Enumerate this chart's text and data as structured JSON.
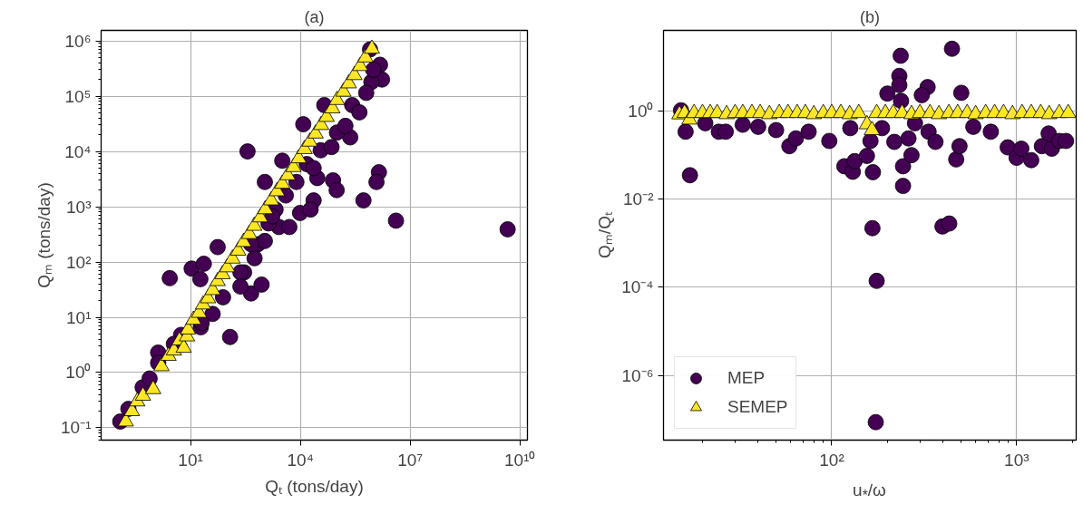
{
  "chart_data": [
    {
      "type": "scatter",
      "title": "(a)",
      "xlabel": "Qₜ (tons/day)",
      "ylabel": "Qₘ (tons/day)",
      "log": "xy",
      "grid": true,
      "legend": false,
      "xlim": [
        0.036,
        16000000000.0
      ],
      "ylim": [
        0.06,
        1550000.0
      ],
      "xticks": [
        {
          "value": 10,
          "label": "10¹"
        },
        {
          "value": 10000,
          "label": "10⁴"
        },
        {
          "value": 10000000,
          "label": "10⁷"
        },
        {
          "value": 10000000000,
          "label": "10¹⁰"
        }
      ],
      "yticks": [
        {
          "value": 0.1,
          "label": "10⁻¹"
        },
        {
          "value": 1,
          "label": "10⁰"
        },
        {
          "value": 10,
          "label": "10¹"
        },
        {
          "value": 100,
          "label": "10²"
        },
        {
          "value": 1000,
          "label": "10³"
        },
        {
          "value": 10000,
          "label": "10⁴"
        },
        {
          "value": 100000,
          "label": "10⁵"
        },
        {
          "value": 1000000,
          "label": "10⁶"
        }
      ],
      "series": [
        {
          "color": "#440154",
          "marker": "circle",
          "x": [
            0.12,
            0.2,
            0.49,
            0.76,
            1.3,
            1.3,
            2.7,
            10.7,
            23,
            18.5,
            19,
            120,
            55,
            450,
            870,
            360,
            1070,
            290,
            690,
            2600,
            5000,
            9800,
            23000,
            29000,
            78000,
            98000,
            230000,
            530000,
            1400000,
            1200000,
            4100000,
            4600000000,
            12000,
            45000,
            3200,
            800000,
            1500000,
            1700000,
            870000,
            630000,
            260000,
            100000,
            36000,
            15000,
            7800,
            4000,
            2100,
            1350,
            1070,
            560,
            230,
            77,
            40,
            20,
            5.5,
            3.5,
            230,
            450,
            19000,
            410000,
            170000,
            71000,
            23000,
            980000,
            1700
          ],
          "values": [
            0.13,
            0.22,
            0.54,
            0.78,
            2.3,
            1.5,
            51,
            76,
            93,
            49,
            6.6,
            4.4,
            186,
            27,
            39,
            10000,
            2800,
            65,
            210,
            430,
            430,
            770,
            1300,
            3300,
            3000,
            2000,
            18000,
            1300,
            4200,
            2800,
            560,
            390,
            31000,
            69000,
            6800,
            700000,
            370000,
            200000,
            180000,
            115000,
            69000,
            22000,
            10500,
            5900,
            2800,
            1600,
            890,
            500,
            240,
            117,
            65,
            23,
            11.5,
            7.9,
            4.8,
            3.3,
            36,
            210,
            890,
            51000,
            29000,
            12000,
            5000,
            300000,
            670
          ]
        },
        {
          "color": "#fde725",
          "marker": "triangle",
          "x": [
            0.17,
            0.25,
            0.35,
            0.5,
            0.95,
            1.6,
            2.5,
            3.5,
            5,
            6.5,
            8,
            8.5,
            12,
            17,
            22,
            30,
            40,
            55,
            75,
            100,
            140,
            200,
            280,
            400,
            550,
            800,
            1100,
            1600,
            2300,
            3200,
            4500,
            6500,
            9000,
            13000,
            18000,
            26000,
            37000,
            52000,
            75000,
            100000,
            150000,
            210000,
            300000,
            430000,
            600000,
            900000
          ],
          "values": [
            0.13,
            0.2,
            0.3,
            0.38,
            0.5,
            1.3,
            2.0,
            2.5,
            3.8,
            2.8,
            4.5,
            6,
            9,
            12,
            17,
            22,
            31,
            45,
            60,
            80,
            115,
            160,
            230,
            320,
            450,
            640,
            900,
            1300,
            1900,
            2600,
            3700,
            5200,
            7500,
            11000,
            15000,
            21000,
            30000,
            42000,
            60000,
            85000,
            120000,
            170000,
            240000,
            350000,
            500000,
            720000
          ]
        }
      ]
    },
    {
      "type": "scatter",
      "title": "(b)",
      "xlabel": "u$_{*}$/ω",
      "ylabel": "Qₘ/Qₜ",
      "log": "xy",
      "grid": true,
      "legend": "bottom left",
      "xlim": [
        12.3,
        2100
      ],
      "ylim": [
        3.4e-08,
        68
      ],
      "xticks": [
        {
          "value": 100,
          "label": "10²"
        },
        {
          "value": 1000,
          "label": "10³"
        }
      ],
      "yticks": [
        {
          "value": 1e-06,
          "label": "10⁻⁶"
        },
        {
          "value": 0.0001,
          "label": "10⁻⁴"
        },
        {
          "value": 0.01,
          "label": "10⁻²"
        },
        {
          "value": 1,
          "label": "10⁰"
        }
      ],
      "series": [
        {
          "name": "MEP",
          "color": "#440154",
          "marker": "circle",
          "x": [
            15.3,
            16.2,
            17.1,
            20.7,
            24.5,
            26.7,
            33,
            40,
            50,
            59,
            64,
            75,
            97,
            117,
            130,
            133,
            126,
            155,
            167,
            166,
            175,
            173,
            187,
            200,
            236,
            232,
            232,
            237,
            243,
            243,
            270,
            260,
            330,
            307,
            334,
            364,
            397,
            432,
            447,
            502,
            471,
            491,
            583,
            725,
            895,
            1000,
            1060,
            1200,
            1370,
            1490,
            1550,
            1700,
            1850,
            282,
            162,
            218
          ],
          "values": [
            1.04,
            0.34,
            0.035,
            0.53,
            0.34,
            0.34,
            0.49,
            0.44,
            0.37,
            0.16,
            0.24,
            0.34,
            0.21,
            0.056,
            0.042,
            0.073,
            0.41,
            0.096,
            0.041,
            0.0022,
            0.00014,
            8.7e-08,
            0.41,
            2.5,
            18,
            6.3,
            3.9,
            1.7,
            0.056,
            0.02,
            0.1,
            0.24,
            3.5,
            2.3,
            0.34,
            0.2,
            0.0024,
            0.0028,
            26,
            2.6,
            0.08,
            0.16,
            0.44,
            0.34,
            0.15,
            0.087,
            0.14,
            0.077,
            0.16,
            0.31,
            0.14,
            0.21,
            0.21,
            0.53,
            0.21,
            0.2
          ]
        },
        {
          "name": "SEMEP",
          "color": "#fde725",
          "marker": "triangle",
          "x": [
            15,
            16,
            17,
            18,
            20,
            22,
            24,
            27,
            30,
            33,
            37,
            41,
            46,
            52,
            58,
            65,
            72,
            80,
            90,
            100,
            112,
            125,
            140,
            155,
            165,
            175,
            195,
            215,
            240,
            270,
            300,
            340,
            380,
            430,
            480,
            540,
            600,
            680,
            760,
            850,
            950,
            1070,
            1200,
            1350,
            1500,
            1700,
            1900
          ],
          "values": [
            0.84,
            0.9,
            0.64,
            0.9,
            0.9,
            0.9,
            0.9,
            0.85,
            0.9,
            0.9,
            0.9,
            0.9,
            0.85,
            0.9,
            0.9,
            0.9,
            0.9,
            0.85,
            0.9,
            0.9,
            0.9,
            0.85,
            0.9,
            0.5,
            0.37,
            0.9,
            0.9,
            0.9,
            0.9,
            0.85,
            0.9,
            0.9,
            0.85,
            0.9,
            0.9,
            0.9,
            0.85,
            0.9,
            0.9,
            0.9,
            0.85,
            0.9,
            0.9,
            0.9,
            0.85,
            0.9,
            0.9
          ]
        }
      ]
    }
  ]
}
